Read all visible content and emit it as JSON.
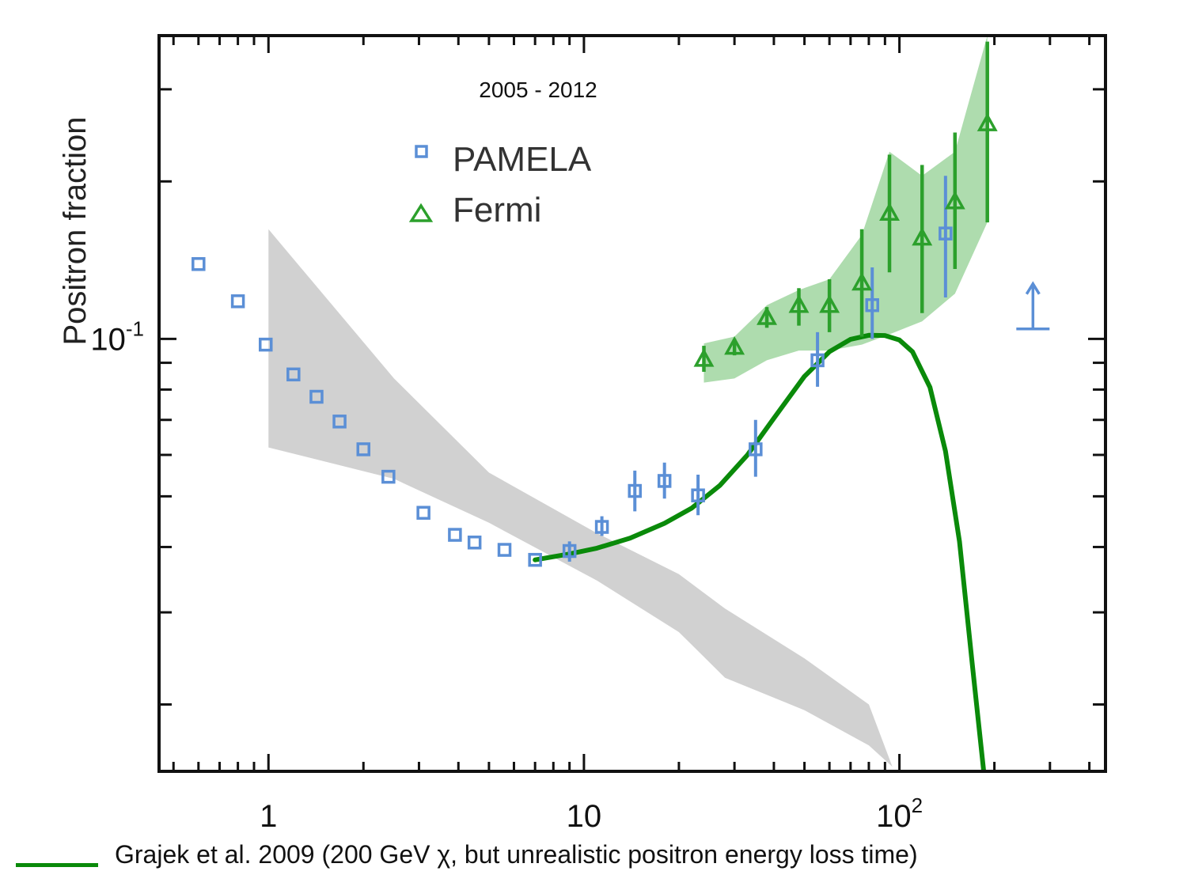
{
  "chart_data": {
    "type": "scatter",
    "subtitle": "2005 - 2012",
    "ylabel": "Positron fraction",
    "xlabel": "",
    "x_scale": "log",
    "y_scale": "log",
    "xlim": [
      0.45,
      450
    ],
    "ylim": [
      0.0149,
      0.38
    ],
    "x_tick_labels": [
      {
        "value": 1,
        "base": "1",
        "exp": ""
      },
      {
        "value": 10,
        "base": "10",
        "exp": ""
      },
      {
        "value": 100,
        "base": "10",
        "exp": "2"
      }
    ],
    "y_tick_labels": [
      {
        "value": 0.1,
        "base": "10",
        "exp": "-1"
      }
    ],
    "legend_position": "upper-center",
    "series": [
      {
        "name": "PAMELA",
        "marker": "open-square",
        "color": "#5b8fd6",
        "points": [
          {
            "x": 0.6,
            "y": 0.139,
            "lo": 0.139,
            "hi": 0.139
          },
          {
            "x": 0.8,
            "y": 0.118,
            "lo": 0.118,
            "hi": 0.118
          },
          {
            "x": 0.98,
            "y": 0.0975,
            "lo": 0.0975,
            "hi": 0.0975
          },
          {
            "x": 1.2,
            "y": 0.0855,
            "lo": 0.0855,
            "hi": 0.0855
          },
          {
            "x": 1.42,
            "y": 0.0775,
            "lo": 0.0775,
            "hi": 0.0775
          },
          {
            "x": 1.68,
            "y": 0.0695,
            "lo": 0.0695,
            "hi": 0.0695
          },
          {
            "x": 2.0,
            "y": 0.0615,
            "lo": 0.0615,
            "hi": 0.0615
          },
          {
            "x": 2.4,
            "y": 0.0545,
            "lo": 0.0545,
            "hi": 0.0545
          },
          {
            "x": 3.1,
            "y": 0.0465,
            "lo": 0.0465,
            "hi": 0.0465
          },
          {
            "x": 3.9,
            "y": 0.0422,
            "lo": 0.0422,
            "hi": 0.0422
          },
          {
            "x": 4.5,
            "y": 0.0408,
            "lo": 0.0408,
            "hi": 0.0408
          },
          {
            "x": 5.6,
            "y": 0.0395,
            "lo": 0.0395,
            "hi": 0.0395
          },
          {
            "x": 7.0,
            "y": 0.0378,
            "lo": 0.0378,
            "hi": 0.0378
          },
          {
            "x": 9.0,
            "y": 0.0393,
            "lo": 0.0375,
            "hi": 0.041
          },
          {
            "x": 11.4,
            "y": 0.0437,
            "lo": 0.042,
            "hi": 0.0458
          },
          {
            "x": 14.5,
            "y": 0.0512,
            "lo": 0.0468,
            "hi": 0.056
          },
          {
            "x": 18.0,
            "y": 0.0535,
            "lo": 0.0495,
            "hi": 0.058
          },
          {
            "x": 23.0,
            "y": 0.0502,
            "lo": 0.046,
            "hi": 0.055
          },
          {
            "x": 35.0,
            "y": 0.0615,
            "lo": 0.0545,
            "hi": 0.07
          },
          {
            "x": 55.0,
            "y": 0.091,
            "lo": 0.081,
            "hi": 0.103
          },
          {
            "x": 82.0,
            "y": 0.116,
            "lo": 0.1,
            "hi": 0.137
          },
          {
            "x": 140.0,
            "y": 0.159,
            "lo": 0.12,
            "hi": 0.205
          }
        ],
        "lower_limit": {
          "x": 265,
          "y": 0.1045
        }
      },
      {
        "name": "Fermi",
        "marker": "open-triangle",
        "color": "#2ca02c",
        "points": [
          {
            "x": 24.0,
            "y": 0.0915,
            "lo": 0.0865,
            "hi": 0.097
          },
          {
            "x": 30.0,
            "y": 0.0965,
            "lo": 0.093,
            "hi": 0.1
          },
          {
            "x": 38.0,
            "y": 0.11,
            "lo": 0.105,
            "hi": 0.115
          },
          {
            "x": 48.0,
            "y": 0.116,
            "lo": 0.106,
            "hi": 0.125
          },
          {
            "x": 60.0,
            "y": 0.116,
            "lo": 0.103,
            "hi": 0.13
          },
          {
            "x": 76.0,
            "y": 0.128,
            "lo": 0.101,
            "hi": 0.162
          },
          {
            "x": 93.0,
            "y": 0.174,
            "lo": 0.134,
            "hi": 0.225
          },
          {
            "x": 118.0,
            "y": 0.156,
            "lo": 0.112,
            "hi": 0.215
          },
          {
            "x": 150.0,
            "y": 0.183,
            "lo": 0.136,
            "hi": 0.248
          },
          {
            "x": 190.0,
            "y": 0.258,
            "lo": 0.167,
            "hi": 0.37
          }
        ],
        "band": {
          "x": [
            24,
            30,
            38,
            48,
            60,
            76,
            93,
            118,
            150,
            190
          ],
          "lo": [
            0.0825,
            0.084,
            0.091,
            0.095,
            0.095,
            0.0975,
            0.102,
            0.108,
            0.122,
            0.167
          ],
          "hi": [
            0.098,
            0.101,
            0.116,
            0.124,
            0.13,
            0.158,
            0.228,
            0.205,
            0.228,
            0.38
          ]
        }
      }
    ],
    "gray_band": {
      "x": [
        1,
        2.5,
        5,
        11,
        20,
        28,
        50,
        80,
        95
      ],
      "lo": [
        0.062,
        0.054,
        0.0445,
        0.0345,
        0.0275,
        0.0225,
        0.0195,
        0.0167,
        0.0152
      ],
      "hi": [
        0.162,
        0.084,
        0.0555,
        0.0425,
        0.0355,
        0.0305,
        0.0245,
        0.02,
        0.0152
      ]
    },
    "model_curve": {
      "name": "Grajek et al. 2009 (200 GeV χ, but unrealistic positron energy loss time)",
      "color": "#0a8a0a",
      "x": [
        7,
        9,
        11,
        14,
        18,
        22,
        27,
        33,
        40,
        50,
        60,
        70,
        80,
        90,
        100,
        110,
        125,
        140,
        155,
        170,
        185
      ],
      "y": [
        0.0378,
        0.0388,
        0.0398,
        0.0416,
        0.0444,
        0.0475,
        0.0525,
        0.06,
        0.0705,
        0.0848,
        0.0945,
        0.0998,
        0.1016,
        0.1015,
        0.0995,
        0.0945,
        0.0808,
        0.061,
        0.041,
        0.024,
        0.0149
      ]
    }
  },
  "caption": {
    "text": "Grajek et al. 2009 (200 GeV χ, but unrealistic positron energy loss time)"
  }
}
